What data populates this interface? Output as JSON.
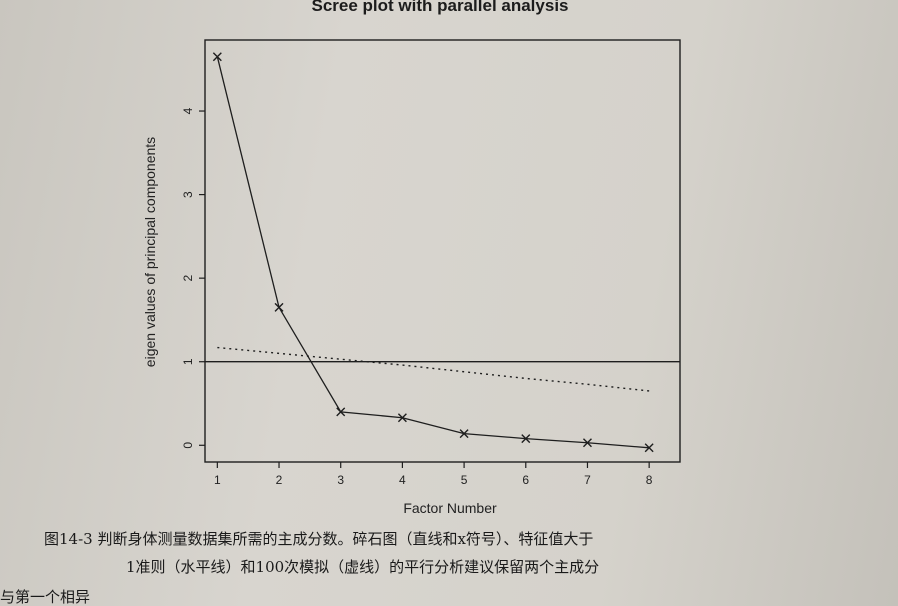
{
  "chart_data": {
    "type": "line",
    "title": "Scree plot with parallel analysis",
    "xlabel": "Factor Number",
    "ylabel": "eigen values of principal components",
    "x": [
      1,
      2,
      3,
      4,
      5,
      6,
      7,
      8
    ],
    "xticks": [
      "1",
      "2",
      "3",
      "4",
      "5",
      "6",
      "7",
      "8"
    ],
    "yticks": [
      "0",
      "1",
      "2",
      "3",
      "4"
    ],
    "xlim": [
      0.8,
      8.5
    ],
    "ylim": [
      -0.2,
      4.85
    ],
    "series": [
      {
        "values": [
          4.65,
          1.65,
          0.4,
          0.33,
          0.14,
          0.08,
          0.03,
          -0.03
        ],
        "style": "solid",
        "marker": "x"
      },
      {
        "values": [
          1.17,
          1.1,
          1.03,
          0.96,
          0.88,
          0.8,
          0.73,
          0.65
        ],
        "style": "dotted",
        "marker": "none"
      }
    ],
    "reference_line": {
      "y": 1,
      "style": "solid"
    },
    "grid": false
  },
  "caption": {
    "line1": "图14-3   判断身体测量数据集所需的主成分数。碎石图（直线和x符号）、特征值大于",
    "line2": "1准则（水平线）和100次模拟（虚线）的平行分析建议保留两个主成分",
    "line3": "与第一个相异"
  }
}
